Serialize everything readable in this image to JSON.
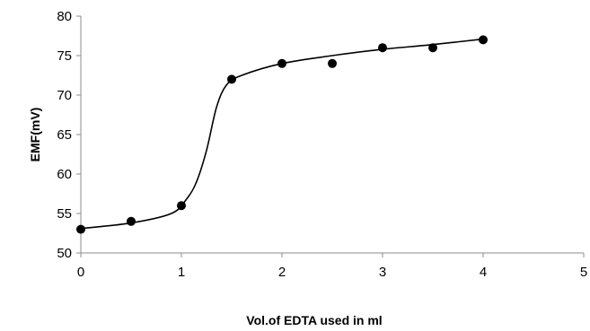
{
  "chart_data": {
    "type": "scatter",
    "title": "",
    "xlabel": "Vol.of EDTA  used in ml",
    "ylabel": "EMF(mV)",
    "xlim": [
      0,
      5
    ],
    "ylim": [
      50,
      80
    ],
    "x_ticks": [
      "0",
      "1",
      "2",
      "3",
      "4",
      "5"
    ],
    "y_ticks": [
      "50",
      "55",
      "60",
      "65",
      "70",
      "75",
      "80"
    ],
    "grid": false,
    "legend": "none",
    "series": [
      {
        "points": [
          {
            "x": 0,
            "y": 53
          },
          {
            "x": 0.5,
            "y": 54
          },
          {
            "x": 1,
            "y": 56
          },
          {
            "x": 1.5,
            "y": 72
          },
          {
            "x": 2,
            "y": 74
          },
          {
            "x": 2.5,
            "y": 74
          },
          {
            "x": 3,
            "y": 76
          },
          {
            "x": 3.5,
            "y": 76
          },
          {
            "x": 4,
            "y": 77
          }
        ]
      }
    ],
    "trendline": {
      "points": [
        {
          "x": 0,
          "y": 53.1
        },
        {
          "x": 0.5,
          "y": 53.8
        },
        {
          "x": 0.9,
          "y": 55.0
        },
        {
          "x": 1.05,
          "y": 56.8
        },
        {
          "x": 1.15,
          "y": 59.0
        },
        {
          "x": 1.25,
          "y": 63.0
        },
        {
          "x": 1.35,
          "y": 68.5
        },
        {
          "x": 1.45,
          "y": 71.3
        },
        {
          "x": 1.6,
          "y": 72.5
        },
        {
          "x": 2.0,
          "y": 74.0
        },
        {
          "x": 2.5,
          "y": 75.0
        },
        {
          "x": 3.0,
          "y": 75.8
        },
        {
          "x": 3.5,
          "y": 76.4
        },
        {
          "x": 4.0,
          "y": 77.1
        }
      ]
    },
    "colors": {
      "marker": "#000000",
      "line": "#000000",
      "axis": "#8c8c8c"
    }
  }
}
